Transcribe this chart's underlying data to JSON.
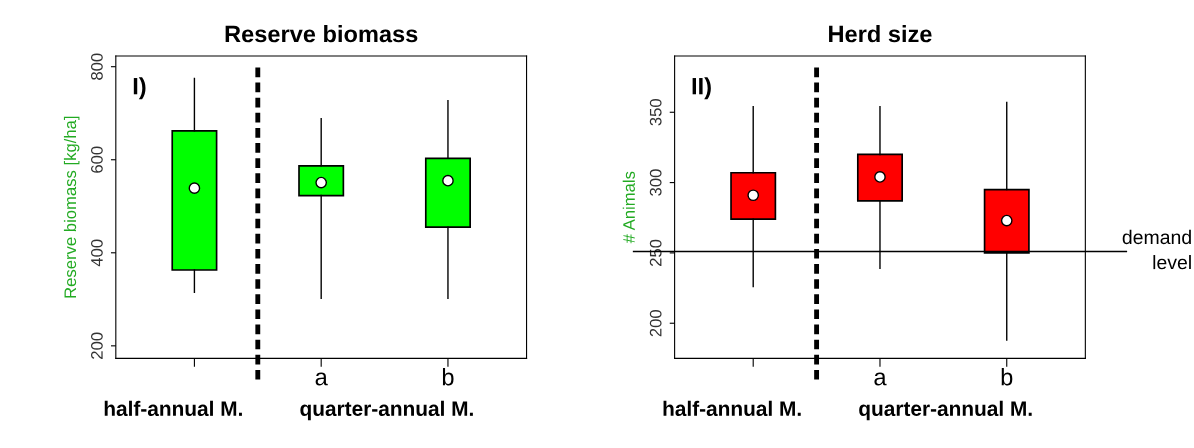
{
  "chart_data": [
    {
      "type": "box",
      "title": "Reserve biomass",
      "ylabel": "Reserve biomass [kg/ha]",
      "categories": [
        null,
        "a",
        "b"
      ],
      "ylim": [
        173,
        823
      ],
      "yticks": [
        200,
        400,
        600,
        800
      ],
      "color": "#00ff00",
      "boxes": [
        {
          "low": 315,
          "q1": 363,
          "median": 539,
          "q3": 662,
          "high": 775
        },
        {
          "low": 302,
          "q1": 523,
          "median": 551,
          "q3": 587,
          "high": 688
        },
        {
          "low": 302,
          "q1": 455,
          "median": 555,
          "q3": 603,
          "high": 727
        }
      ],
      "annotations": [
        "I)",
        "half-annual M.",
        "quarter-annual M."
      ],
      "grid": false,
      "legend": false
    },
    {
      "type": "box",
      "title": "Herd size",
      "ylabel": "# Animals",
      "categories": [
        null,
        "a",
        "b"
      ],
      "ylim": [
        175,
        390
      ],
      "yticks": [
        200,
        250,
        300,
        350
      ],
      "color": "#ff0000",
      "boxes": [
        {
          "low": 226,
          "q1": 274,
          "median": 291,
          "q3": 307,
          "high": 354
        },
        {
          "low": 239,
          "q1": 287,
          "median": 304,
          "q3": 320,
          "high": 354
        },
        {
          "low": 188,
          "q1": 250,
          "median": 273,
          "q3": 295,
          "high": 357
        }
      ],
      "ref_lines": [
        {
          "axis": "y",
          "value": 251,
          "label": "demand\nlevel",
          "line_style": "solid"
        }
      ],
      "annotations": [
        "II)",
        "half-annual M.",
        "quarter-annual M."
      ],
      "grid": false,
      "legend": false
    }
  ]
}
